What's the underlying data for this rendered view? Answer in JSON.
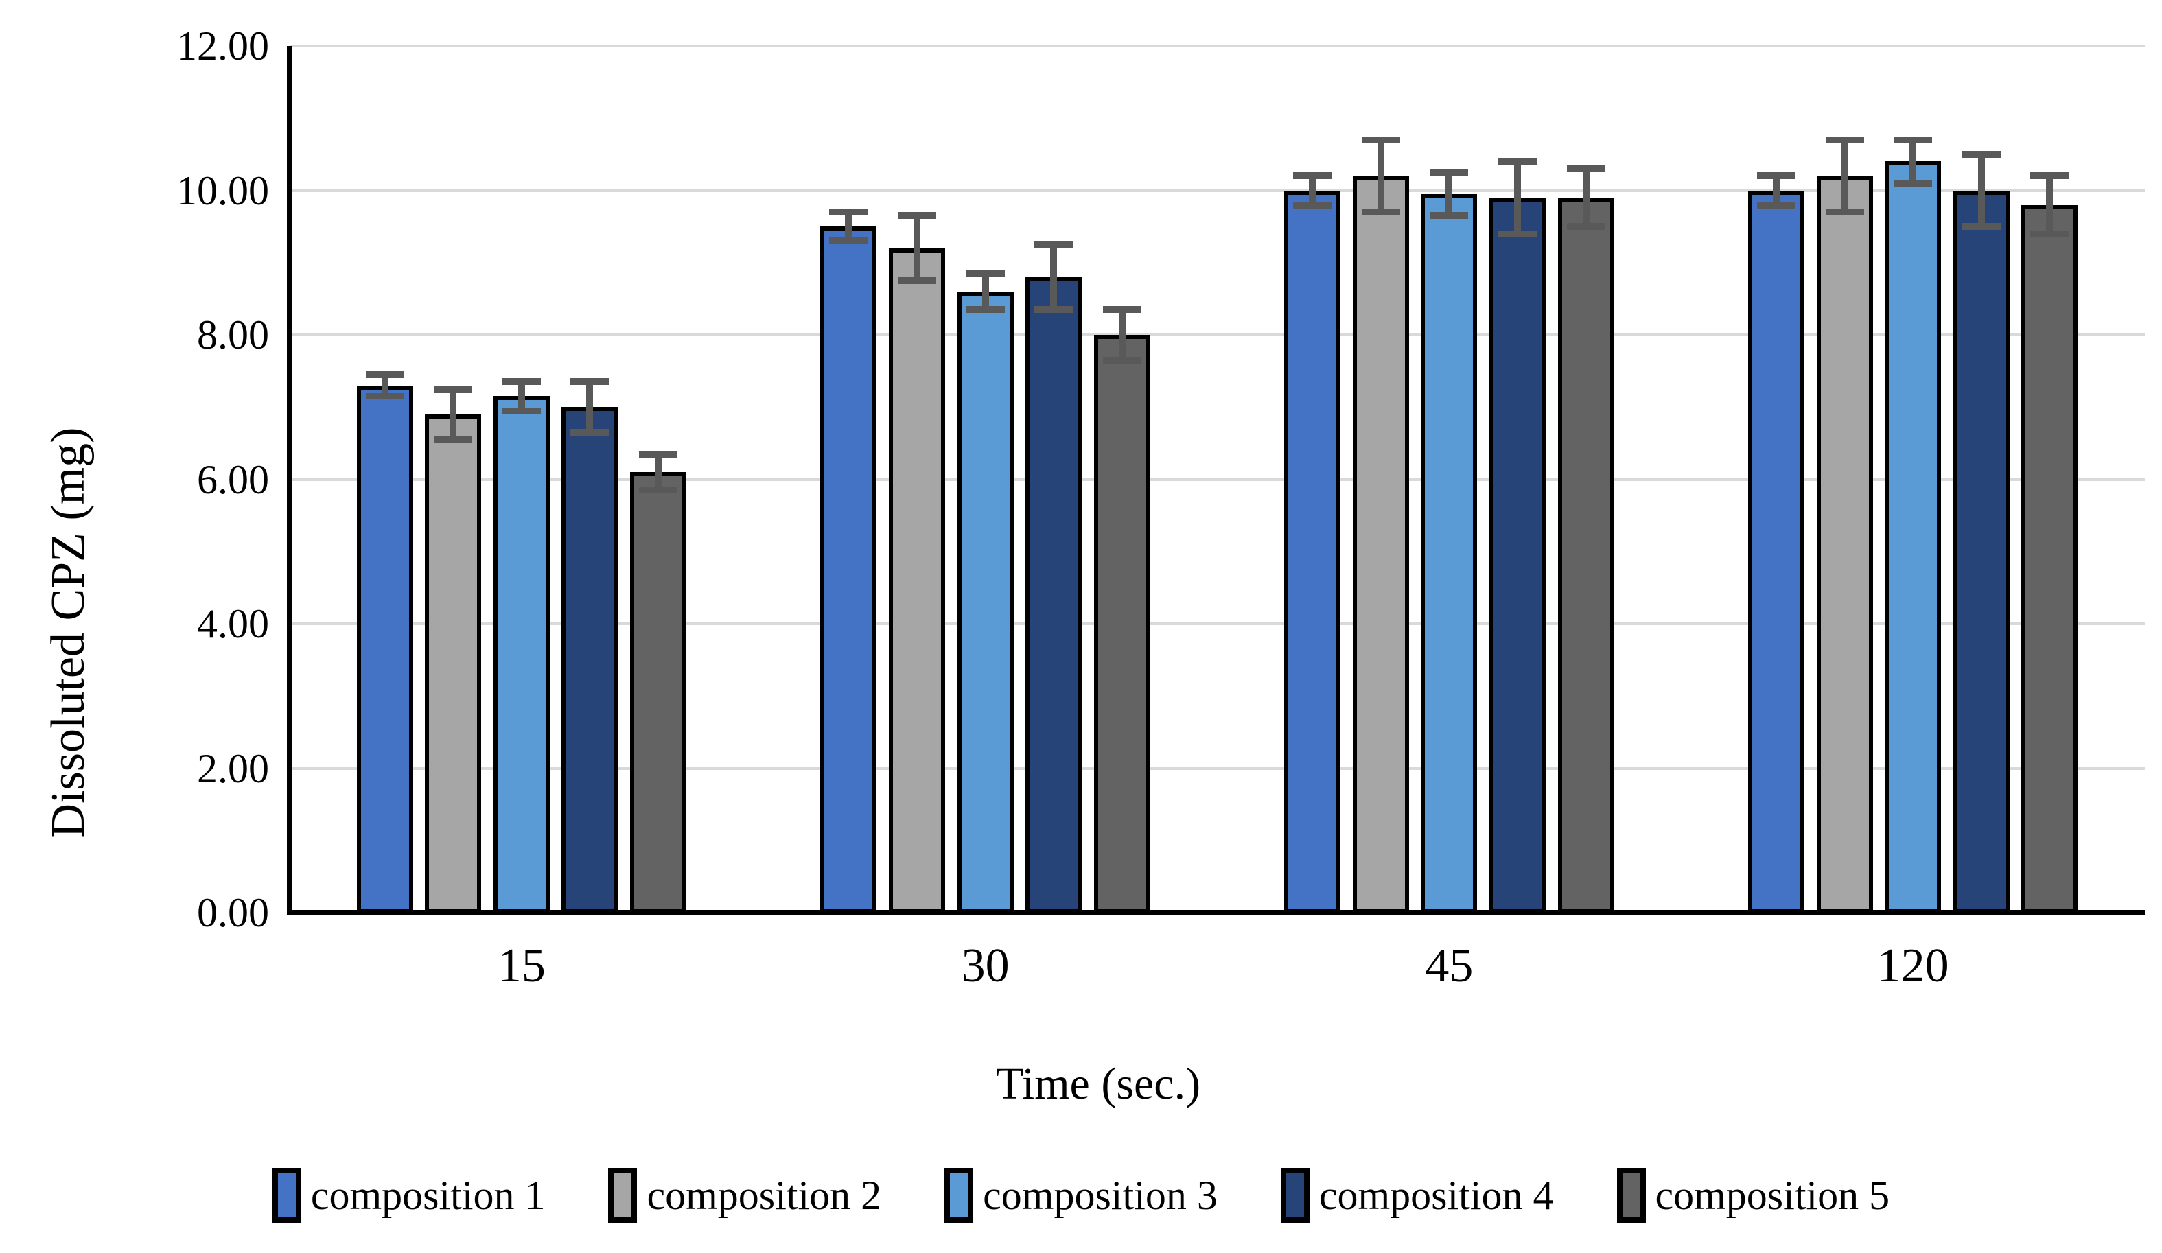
{
  "figure": {
    "background": "#FFFFFF"
  },
  "chart_data": {
    "type": "bar",
    "title": "",
    "xlabel": "Time (sec.)",
    "ylabel": "Dissoluted CPZ (mg)",
    "categories": [
      "15",
      "30",
      "45",
      "120"
    ],
    "series": [
      {
        "name": "composition 1",
        "color": "#4472C4",
        "values": [
          7.3,
          9.5,
          10.0,
          10.0
        ],
        "errors": [
          0.15,
          0.2,
          0.2,
          0.2
        ]
      },
      {
        "name": "composition 2",
        "color": "#A6A6A6",
        "values": [
          6.9,
          9.2,
          10.2,
          10.2
        ],
        "errors": [
          0.35,
          0.45,
          0.5,
          0.5
        ]
      },
      {
        "name": "composition 3",
        "color": "#5B9BD5",
        "values": [
          7.15,
          8.6,
          9.95,
          10.4
        ],
        "errors": [
          0.2,
          0.25,
          0.3,
          0.3
        ]
      },
      {
        "name": "composition 4",
        "color": "#264478",
        "values": [
          7.0,
          8.8,
          9.9,
          10.0
        ],
        "errors": [
          0.35,
          0.45,
          0.5,
          0.5
        ]
      },
      {
        "name": "composition 5",
        "color": "#636363",
        "values": [
          6.1,
          8.0,
          9.9,
          9.8
        ],
        "errors": [
          0.25,
          0.35,
          0.4,
          0.4
        ]
      }
    ],
    "ylim": [
      0,
      12
    ],
    "ytick_step": 2,
    "ytick_decimals": 2,
    "grid": true,
    "legend_position": "bottom",
    "colors": {
      "error_bar": "#595959",
      "gridline": "#D9D9D9",
      "axis": "#000000",
      "bar_border": "#000000"
    }
  }
}
